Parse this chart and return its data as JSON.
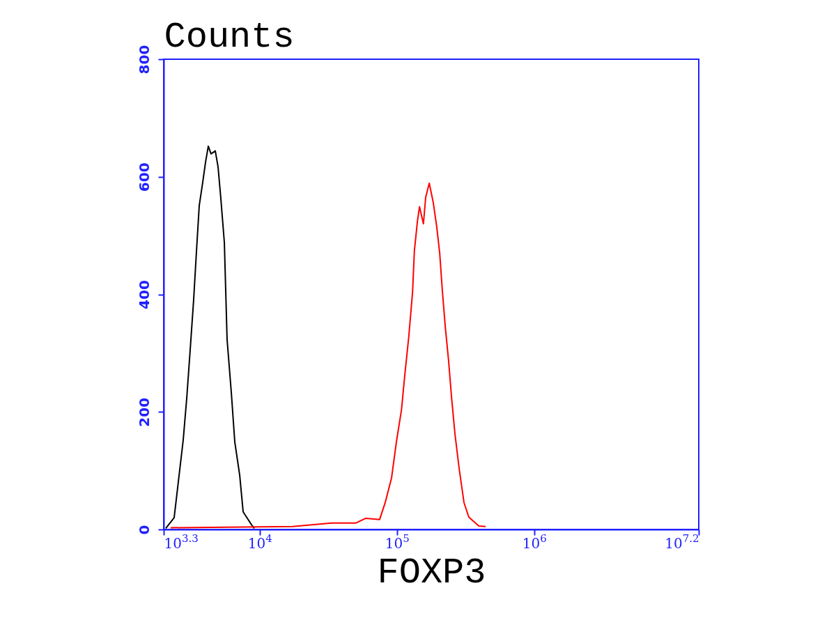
{
  "chart_data": {
    "type": "line",
    "xlabel": "FOXP3",
    "ylabel": "Counts",
    "log": "x",
    "xlim": [
      1995.26,
      15848932
    ],
    "xticks": [
      {
        "value": 1995.26,
        "label": "10$^{3.3}$"
      },
      {
        "value": 10000,
        "label": "10$^{4}$"
      },
      {
        "value": 100000,
        "label": "10$^{5}$"
      },
      {
        "value": 1000000,
        "label": "10$^{6}$"
      },
      {
        "value": 15848932,
        "label": "10$^{7.2}$"
      }
    ],
    "ylim": [
      0,
      800
    ],
    "yticks": [
      0,
      200,
      400,
      600,
      800
    ],
    "grid": false,
    "series": [
      {
        "color": "#000000",
        "x": [
          2065,
          2377,
          2582,
          2767,
          2938,
          3112,
          3296,
          3459,
          3622,
          3837,
          4027,
          4217,
          4416,
          4742,
          4966,
          5200,
          5521,
          5781,
          6209,
          6577,
          7145,
          7568,
          8710,
          9120
        ],
        "values": [
          2,
          20,
          92,
          152,
          224,
          306,
          390,
          474,
          551,
          590,
          625,
          652,
          639,
          644,
          617,
          564,
          488,
          323,
          232,
          149,
          92,
          30,
          8,
          2
        ]
      },
      {
        "color": "#ff0000",
        "x": [
          2240,
          17400,
          33400,
          50400,
          59300,
          74800,
          82200,
          91400,
          99100,
          108000,
          114000,
          122000,
          130000,
          134000,
          141000,
          146000,
          156000,
          162000,
          172000,
          184000,
          195000,
          205000,
          214000,
          225000,
          238000,
          250000,
          265000,
          284000,
          308000,
          334000,
          395000,
          443000
        ],
        "values": [
          3,
          5,
          11,
          11,
          19,
          17,
          46,
          88,
          149,
          204,
          262,
          328,
          404,
          474,
          524,
          549,
          520,
          565,
          589,
          556,
          515,
          470,
          408,
          345,
          287,
          225,
          162,
          104,
          46,
          21,
          6,
          5
        ]
      }
    ]
  }
}
